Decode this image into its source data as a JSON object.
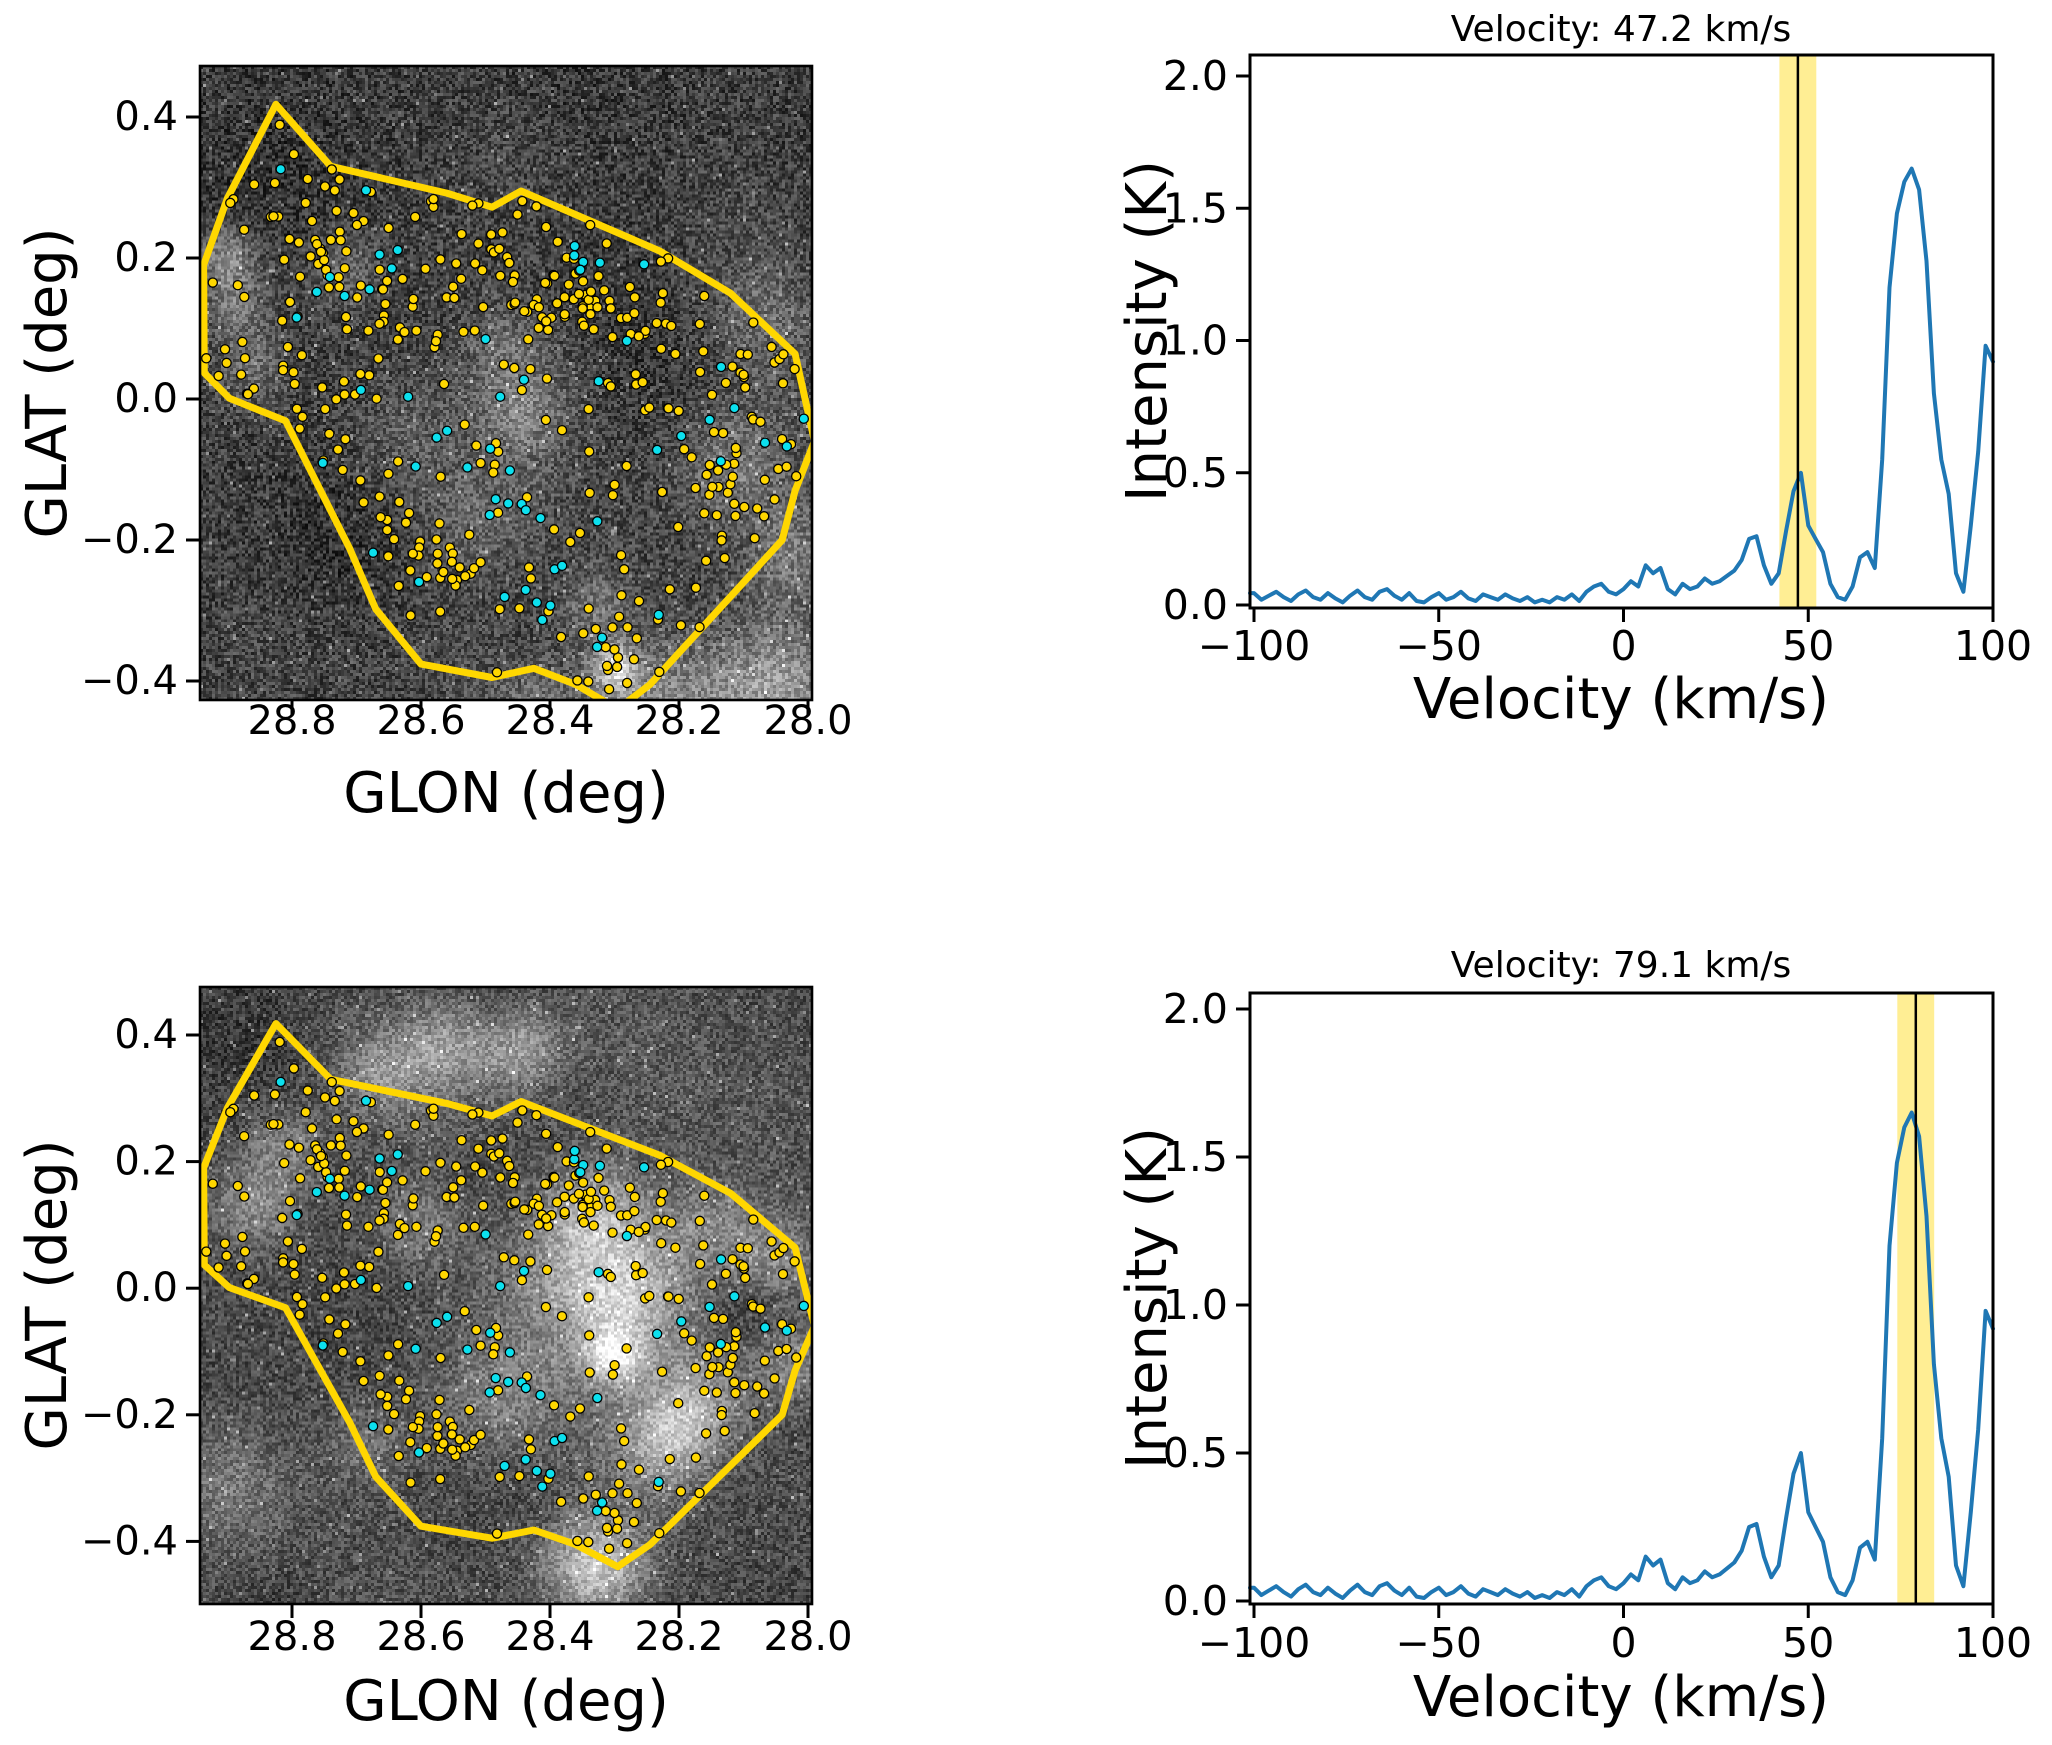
{
  "figure": {
    "background": "#ffffff",
    "frame_color": "#000000",
    "description": "Four-panel astronomy figure: two GLON/GLAT maps with region polygon and source scatter, two velocity spectra with highlighted channel bands"
  },
  "chart_data": {
    "type": "multi_panel",
    "maps": {
      "type": "scatter",
      "xlabel": "GLON (deg)",
      "ylabel": "GLAT (deg)",
      "xlim": [
        28.943,
        27.994
      ],
      "xticks": [
        28.8,
        28.6,
        28.4,
        28.2,
        28.0
      ],
      "xtick_labels": [
        "28.8",
        "28.6",
        "28.4",
        "28.2",
        "28.0"
      ],
      "yticks": [
        0.4,
        0.2,
        0.0,
        -0.2,
        -0.4
      ],
      "ytick_labels": [
        "0.4",
        "0.2",
        "0.0",
        "−0.2",
        "−0.4"
      ],
      "polygon_color": "#FFD700",
      "region_polygon_deg": [
        [
          28.825,
          0.418
        ],
        [
          28.74,
          0.33
        ],
        [
          28.56,
          0.292
        ],
        [
          28.49,
          0.272
        ],
        [
          28.445,
          0.295
        ],
        [
          28.23,
          0.21
        ],
        [
          28.12,
          0.15
        ],
        [
          28.02,
          0.064
        ],
        [
          27.99,
          -0.06
        ],
        [
          28.02,
          -0.13
        ],
        [
          28.04,
          -0.2
        ],
        [
          28.13,
          -0.29
        ],
        [
          28.19,
          -0.35
        ],
        [
          28.245,
          -0.405
        ],
        [
          28.295,
          -0.44
        ],
        [
          28.36,
          -0.405
        ],
        [
          28.425,
          -0.382
        ],
        [
          28.49,
          -0.395
        ],
        [
          28.6,
          -0.376
        ],
        [
          28.67,
          -0.298
        ],
        [
          28.71,
          -0.213
        ],
        [
          28.81,
          -0.031
        ],
        [
          28.897,
          0.001
        ],
        [
          28.936,
          0.037
        ],
        [
          28.937,
          0.19
        ],
        [
          28.9,
          0.285
        ]
      ],
      "scatter": {
        "seed": 7,
        "point_radius_px": 4.6,
        "edge_color": "#000000",
        "yellow": {
          "color": "#FFD700",
          "uniform_count": 215,
          "clusters": [
            [
              28.76,
              0.25,
              0.045,
              16
            ],
            [
              28.7,
              0.17,
              0.04,
              12
            ],
            [
              28.835,
              0.055,
              0.035,
              12
            ],
            [
              28.62,
              0.11,
              0.05,
              10
            ],
            [
              28.35,
              0.145,
              0.022,
              26
            ],
            [
              28.415,
              0.125,
              0.02,
              12
            ],
            [
              28.25,
              0.115,
              0.028,
              12
            ],
            [
              28.44,
              0.24,
              0.05,
              10
            ],
            [
              28.56,
              -0.245,
              0.025,
              14
            ],
            [
              28.6,
              -0.21,
              0.03,
              8
            ],
            [
              28.315,
              -0.325,
              0.028,
              10
            ],
            [
              28.3,
              -0.385,
              0.02,
              6
            ],
            [
              28.09,
              -0.12,
              0.035,
              9
            ],
            [
              28.07,
              0.03,
              0.03,
              8
            ],
            [
              28.18,
              -0.05,
              0.045,
              8
            ]
          ]
        },
        "cyan": {
          "color": "#0CE0EE",
          "uniform_count": 30,
          "clusters": [
            [
              28.46,
              -0.14,
              0.03,
              5
            ],
            [
              28.43,
              -0.3,
              0.025,
              4
            ],
            [
              28.61,
              0.23,
              0.05,
              5
            ],
            [
              28.35,
              0.2,
              0.02,
              3
            ],
            [
              28.13,
              -0.05,
              0.05,
              6
            ],
            [
              28.58,
              -0.07,
              0.04,
              4
            ],
            [
              27.995,
              -0.01,
              0.008,
              1
            ]
          ]
        }
      },
      "panels": [
        {
          "velocity_kms": 47.2,
          "background": {
            "seed": 11,
            "base": 0.24,
            "grain": 0.16,
            "cloud_amp": 0.05,
            "cloud_count": 22,
            "blobs": [
              [
                28.9,
                0.2,
                0.03,
                0.3
              ],
              [
                28.885,
                0.13,
                0.035,
                0.22
              ],
              [
                28.86,
                0.04,
                0.04,
                0.18
              ],
              [
                28.44,
                -0.02,
                0.05,
                0.22
              ],
              [
                28.52,
                -0.18,
                0.06,
                0.14
              ],
              [
                28.3,
                -0.385,
                0.022,
                0.55
              ],
              [
                28.33,
                -0.3,
                0.04,
                0.18
              ],
              [
                28.12,
                -0.1,
                0.06,
                0.22
              ],
              [
                28.02,
                -0.22,
                0.05,
                0.22
              ],
              [
                28.05,
                -0.42,
                0.08,
                0.35
              ],
              [
                28.25,
                -0.45,
                0.07,
                0.25
              ],
              [
                28.42,
                -0.46,
                0.05,
                0.22
              ],
              [
                28.07,
                0.12,
                0.05,
                0.15
              ],
              [
                28.47,
                0.08,
                0.04,
                0.12
              ],
              [
                28.62,
                -0.06,
                0.06,
                0.12
              ],
              [
                28.72,
                0.18,
                0.04,
                0.15
              ]
            ]
          }
        },
        {
          "velocity_kms": 79.1,
          "background": {
            "seed": 21,
            "base": 0.28,
            "grain": 0.14,
            "cloud_amp": 0.07,
            "cloud_count": 26,
            "blobs": [
              [
                28.56,
                0.39,
                0.05,
                0.3
              ],
              [
                28.44,
                0.38,
                0.045,
                0.26
              ],
              [
                28.66,
                0.34,
                0.04,
                0.2
              ],
              [
                28.86,
                0.13,
                0.05,
                0.26
              ],
              [
                28.81,
                0.22,
                0.04,
                0.2
              ],
              [
                28.35,
                0.03,
                0.1,
                0.33
              ],
              [
                28.28,
                -0.02,
                0.07,
                0.3
              ],
              [
                28.33,
                0.12,
                0.05,
                0.25
              ],
              [
                28.3,
                -0.11,
                0.03,
                0.45
              ],
              [
                28.17,
                -0.18,
                0.06,
                0.42
              ],
              [
                28.22,
                -0.25,
                0.05,
                0.3
              ],
              [
                28.33,
                -0.44,
                0.055,
                0.5
              ],
              [
                28.6,
                0.1,
                0.05,
                0.2
              ],
              [
                28.05,
                0.05,
                0.05,
                0.25
              ],
              [
                28.02,
                -0.12,
                0.045,
                0.25
              ],
              [
                28.68,
                -0.25,
                0.05,
                0.16
              ],
              [
                28.9,
                -0.32,
                0.07,
                0.16
              ],
              [
                28.48,
                -0.18,
                0.07,
                0.18
              ],
              [
                28.15,
                0.1,
                0.05,
                0.18
              ]
            ]
          }
        }
      ]
    },
    "spectra": {
      "type": "line",
      "xlabel": "Velocity (km/s)",
      "ylabel": "Intensity (K)",
      "xlim": [
        -101.1,
        100.4
      ],
      "ylim": [
        -0.011,
        2.079
      ],
      "xticks": [
        -100,
        -50,
        0,
        50,
        100
      ],
      "xtick_labels": [
        "−100",
        "−50",
        "0",
        "50",
        "100"
      ],
      "yticks": [
        0.0,
        0.5,
        1.0,
        1.5,
        2.0
      ],
      "ytick_labels": [
        "0.0",
        "0.5",
        "1.0",
        "1.5",
        "2.0"
      ],
      "line_color": "#1f77b4",
      "band_color": "#FFD700",
      "band_opacity": 0.42,
      "marker_color": "#000000",
      "velocity_start_kms": -100,
      "velocity_step_kms": 2,
      "intensity_K": [
        0.045,
        0.02,
        0.035,
        0.05,
        0.03,
        0.015,
        0.04,
        0.055,
        0.03,
        0.02,
        0.045,
        0.025,
        0.01,
        0.035,
        0.055,
        0.03,
        0.02,
        0.05,
        0.06,
        0.035,
        0.02,
        0.045,
        0.015,
        0.01,
        0.03,
        0.045,
        0.02,
        0.03,
        0.05,
        0.025,
        0.015,
        0.04,
        0.03,
        0.02,
        0.04,
        0.025,
        0.015,
        0.03,
        0.01,
        0.02,
        0.01,
        0.03,
        0.02,
        0.04,
        0.015,
        0.05,
        0.07,
        0.08,
        0.05,
        0.04,
        0.06,
        0.09,
        0.07,
        0.15,
        0.12,
        0.14,
        0.06,
        0.04,
        0.08,
        0.06,
        0.07,
        0.1,
        0.08,
        0.09,
        0.11,
        0.13,
        0.17,
        0.25,
        0.26,
        0.15,
        0.08,
        0.12,
        0.28,
        0.43,
        0.5,
        0.3,
        0.25,
        0.2,
        0.08,
        0.03,
        0.02,
        0.07,
        0.18,
        0.2,
        0.14,
        0.55,
        1.2,
        1.48,
        1.6,
        1.65,
        1.57,
        1.3,
        0.8,
        0.55,
        0.42,
        0.12,
        0.05,
        0.3,
        0.58,
        0.98,
        0.92
      ],
      "panels": [
        {
          "title": "Velocity: 47.2 km/s",
          "marker_kms": 47.2,
          "band_kms": [
            42.2,
            52.2
          ]
        },
        {
          "title": "Velocity: 79.1 km/s",
          "marker_kms": 79.1,
          "band_kms": [
            74.1,
            84.1
          ]
        }
      ]
    }
  }
}
